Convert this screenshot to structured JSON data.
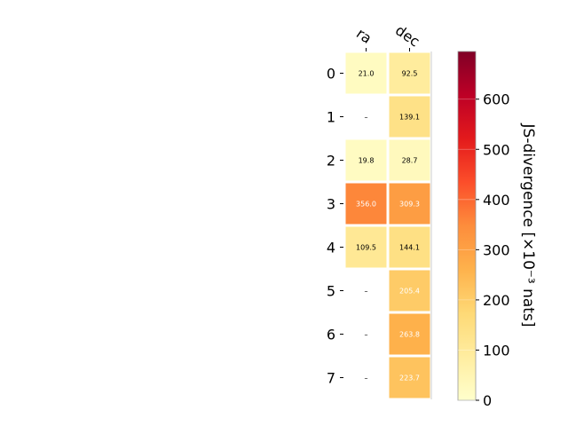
{
  "chart_data": {
    "type": "heatmap",
    "columns": [
      "ra",
      "dec"
    ],
    "rows": [
      "0",
      "1",
      "2",
      "3",
      "4",
      "5",
      "6",
      "7"
    ],
    "values": [
      [
        21.0,
        92.5
      ],
      [
        null,
        139.1
      ],
      [
        19.8,
        28.7
      ],
      [
        356.0,
        309.3
      ],
      [
        109.5,
        144.1
      ],
      [
        null,
        205.4
      ],
      [
        null,
        263.8
      ],
      [
        null,
        223.7
      ]
    ],
    "cell_labels": [
      [
        "21.0",
        "92.5"
      ],
      [
        "–",
        "139.1"
      ],
      [
        "19.8",
        "28.7"
      ],
      [
        "356.0",
        "309.3"
      ],
      [
        "109.5",
        "144.1"
      ],
      [
        "–",
        "205.4"
      ],
      [
        "–",
        "263.8"
      ],
      [
        "–",
        "223.7"
      ]
    ],
    "colorbar": {
      "label": "JS-divergence [×10⁻³ nats]",
      "ticks": [
        "0",
        "100",
        "200",
        "300",
        "400",
        "500",
        "600"
      ],
      "tick_values": [
        0,
        100,
        200,
        300,
        400,
        500,
        600
      ],
      "range": [
        0,
        695
      ],
      "colormap": "YlOrRd"
    }
  }
}
